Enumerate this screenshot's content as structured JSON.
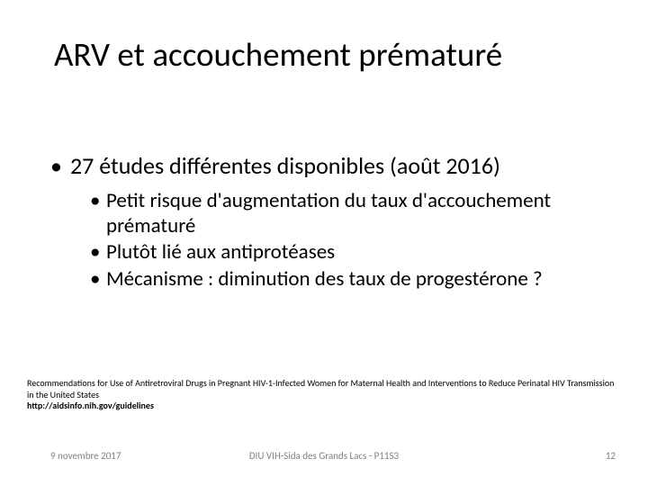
{
  "title": "ARV et accouchement prématuré",
  "body": {
    "lvl1": "27 études différentes disponibles (août 2016)",
    "lvl2": [
      "Petit risque d'augmentation du taux d'accouchement prématuré",
      "Plutôt lié aux antiprotéases",
      "Mécanisme : diminution des taux de progestérone ?"
    ]
  },
  "reference": {
    "text": "Recommendations for Use of Antiretroviral Drugs in Pregnant HIV-1-Infected Women for Maternal Health and Interventions to Reduce Perinatal HIV Transmission in the United States",
    "link": "http://aidsinfo.nih.gov/guidelines"
  },
  "footer": {
    "date": "9 novembre 2017",
    "center": "DIU VIH-Sida des Grands Lacs - P11S3",
    "page": "12"
  },
  "colors": {
    "background": "#ffffff",
    "text": "#000000",
    "footer_text": "#808080"
  },
  "fonts": {
    "title_size_pt": 37,
    "lvl1_size_pt": 26,
    "lvl2_size_pt": 23,
    "ref_size_pt": 10,
    "footer_size_pt": 11
  }
}
